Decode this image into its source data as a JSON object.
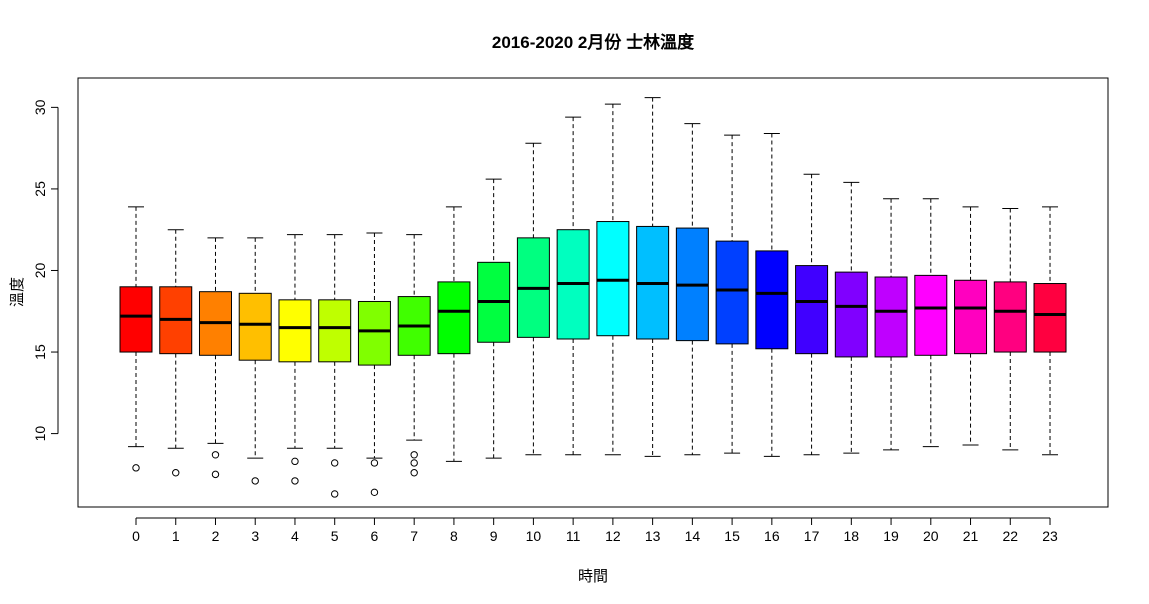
{
  "chart_data": {
    "type": "box",
    "title": "2016-2020 2月份 士林溫度",
    "xlabel": "時間",
    "ylabel": "溫度",
    "ylim": [
      5.5,
      31.8
    ],
    "y_ticks": [
      10,
      15,
      20,
      25,
      30
    ],
    "categories": [
      "0",
      "1",
      "2",
      "3",
      "4",
      "5",
      "6",
      "7",
      "8",
      "9",
      "10",
      "11",
      "12",
      "13",
      "14",
      "15",
      "16",
      "17",
      "18",
      "19",
      "20",
      "21",
      "22",
      "23"
    ],
    "colors": [
      "#FF0000",
      "#FF4000",
      "#FF8000",
      "#FFBF00",
      "#FFFF00",
      "#BFFF00",
      "#80FF00",
      "#40FF00",
      "#00FF00",
      "#00FF40",
      "#00FF80",
      "#00FFBF",
      "#00FFFF",
      "#00BFFF",
      "#0080FF",
      "#0040FF",
      "#0000FF",
      "#4000FF",
      "#8000FF",
      "#BF00FF",
      "#FF00FF",
      "#FF00BF",
      "#FF0080",
      "#FF0040"
    ],
    "boxes": [
      {
        "min": 9.2,
        "q1": 15.0,
        "median": 17.2,
        "q3": 19.0,
        "max": 23.9,
        "outliers": [
          7.9
        ]
      },
      {
        "min": 9.1,
        "q1": 14.9,
        "median": 17.0,
        "q3": 19.0,
        "max": 22.5,
        "outliers": [
          7.6
        ]
      },
      {
        "min": 9.4,
        "q1": 14.8,
        "median": 16.8,
        "q3": 18.7,
        "max": 22.0,
        "outliers": [
          8.7,
          7.5
        ]
      },
      {
        "min": 8.5,
        "q1": 14.5,
        "median": 16.7,
        "q3": 18.6,
        "max": 22.0,
        "outliers": [
          7.1
        ]
      },
      {
        "min": 9.1,
        "q1": 14.4,
        "median": 16.5,
        "q3": 18.2,
        "max": 22.2,
        "outliers": [
          8.3,
          7.1
        ]
      },
      {
        "min": 9.1,
        "q1": 14.4,
        "median": 16.5,
        "q3": 18.2,
        "max": 22.2,
        "outliers": [
          8.2,
          6.3
        ]
      },
      {
        "min": 8.5,
        "q1": 14.2,
        "median": 16.3,
        "q3": 18.1,
        "max": 22.3,
        "outliers": [
          8.2,
          6.4
        ]
      },
      {
        "min": 9.6,
        "q1": 14.8,
        "median": 16.6,
        "q3": 18.4,
        "max": 22.2,
        "outliers": [
          8.7,
          8.2,
          7.6
        ]
      },
      {
        "min": 8.3,
        "q1": 14.9,
        "median": 17.5,
        "q3": 19.3,
        "max": 23.9,
        "outliers": []
      },
      {
        "min": 8.5,
        "q1": 15.6,
        "median": 18.1,
        "q3": 20.5,
        "max": 25.6,
        "outliers": []
      },
      {
        "min": 8.7,
        "q1": 15.9,
        "median": 18.9,
        "q3": 22.0,
        "max": 27.8,
        "outliers": []
      },
      {
        "min": 8.7,
        "q1": 15.8,
        "median": 19.2,
        "q3": 22.5,
        "max": 29.4,
        "outliers": []
      },
      {
        "min": 8.7,
        "q1": 16.0,
        "median": 19.4,
        "q3": 23.0,
        "max": 30.2,
        "outliers": []
      },
      {
        "min": 8.6,
        "q1": 15.8,
        "median": 19.2,
        "q3": 22.7,
        "max": 30.6,
        "outliers": []
      },
      {
        "min": 8.7,
        "q1": 15.7,
        "median": 19.1,
        "q3": 22.6,
        "max": 29.0,
        "outliers": []
      },
      {
        "min": 8.8,
        "q1": 15.5,
        "median": 18.8,
        "q3": 21.8,
        "max": 28.3,
        "outliers": []
      },
      {
        "min": 8.6,
        "q1": 15.2,
        "median": 18.6,
        "q3": 21.2,
        "max": 28.4,
        "outliers": []
      },
      {
        "min": 8.7,
        "q1": 14.9,
        "median": 18.1,
        "q3": 20.3,
        "max": 25.9,
        "outliers": []
      },
      {
        "min": 8.8,
        "q1": 14.7,
        "median": 17.8,
        "q3": 19.9,
        "max": 25.4,
        "outliers": []
      },
      {
        "min": 9.0,
        "q1": 14.7,
        "median": 17.5,
        "q3": 19.6,
        "max": 24.4,
        "outliers": []
      },
      {
        "min": 9.2,
        "q1": 14.8,
        "median": 17.7,
        "q3": 19.7,
        "max": 24.4,
        "outliers": []
      },
      {
        "min": 9.3,
        "q1": 14.9,
        "median": 17.7,
        "q3": 19.4,
        "max": 23.9,
        "outliers": []
      },
      {
        "min": 9.0,
        "q1": 15.0,
        "median": 17.5,
        "q3": 19.3,
        "max": 23.8,
        "outliers": []
      },
      {
        "min": 8.7,
        "q1": 15.0,
        "median": 17.3,
        "q3": 19.2,
        "max": 23.9,
        "outliers": []
      }
    ]
  }
}
